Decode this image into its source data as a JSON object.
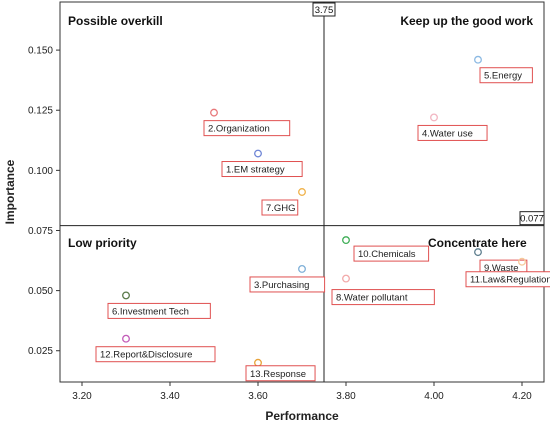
{
  "chart_data": {
    "type": "scatter",
    "xlabel": "Performance",
    "ylabel": "Importance",
    "xlim": [
      3.15,
      4.25
    ],
    "ylim": [
      0.012,
      0.17
    ],
    "x_ticks": [
      "3.20",
      "3.40",
      "3.60",
      "3.80",
      "4.00",
      "4.20"
    ],
    "x_tick_values": [
      3.2,
      3.4,
      3.6,
      3.8,
      4.0,
      4.2
    ],
    "y_ticks": [
      "0.025",
      "0.050",
      "0.075",
      "0.100",
      "0.125",
      "0.150"
    ],
    "y_tick_values": [
      0.025,
      0.05,
      0.075,
      0.1,
      0.125,
      0.15
    ],
    "grid": false,
    "reference_lines": {
      "x": {
        "value": 3.75,
        "label": "3.75"
      },
      "y": {
        "value": 0.077,
        "label": "0.077"
      }
    },
    "quadrants": [
      {
        "name": "top-left",
        "label": "Possible overkill"
      },
      {
        "name": "top-right",
        "label": "Keep up the good work"
      },
      {
        "name": "bottom-left",
        "label": "Low priority"
      },
      {
        "name": "bottom-right",
        "label": "Concentrate here"
      }
    ],
    "points": [
      {
        "label": "1.EM strategy",
        "x": 3.6,
        "y": 0.107,
        "color": "#6f86d6"
      },
      {
        "label": "2.Organization",
        "x": 3.5,
        "y": 0.124,
        "color": "#e8787a"
      },
      {
        "label": "3.Purchasing",
        "x": 3.7,
        "y": 0.059,
        "color": "#7fb0d8"
      },
      {
        "label": "4.Water use",
        "x": 4.0,
        "y": 0.122,
        "color": "#f2b6c2"
      },
      {
        "label": "5.Energy",
        "x": 4.1,
        "y": 0.146,
        "color": "#8bb9e3"
      },
      {
        "label": "6.Investment Tech",
        "x": 3.3,
        "y": 0.048,
        "color": "#5a7a4a"
      },
      {
        "label": "7.GHG",
        "x": 3.7,
        "y": 0.091,
        "color": "#f0b24a"
      },
      {
        "label": "8.Water pollutant",
        "x": 3.8,
        "y": 0.055,
        "color": "#f2a9a9"
      },
      {
        "label": "9.Waste",
        "x": 4.1,
        "y": 0.066,
        "color": "#5f7f8f"
      },
      {
        "label": "10.Chemicals",
        "x": 3.8,
        "y": 0.071,
        "color": "#3fae57"
      },
      {
        "label": "11.Law&Regulation",
        "x": 4.2,
        "y": 0.062,
        "color": "#f6c99a"
      },
      {
        "label": "12.Report&Disclosure",
        "x": 3.3,
        "y": 0.03,
        "color": "#c25bb8"
      },
      {
        "label": "13.Response",
        "x": 3.6,
        "y": 0.02,
        "color": "#e8a33a"
      }
    ]
  }
}
